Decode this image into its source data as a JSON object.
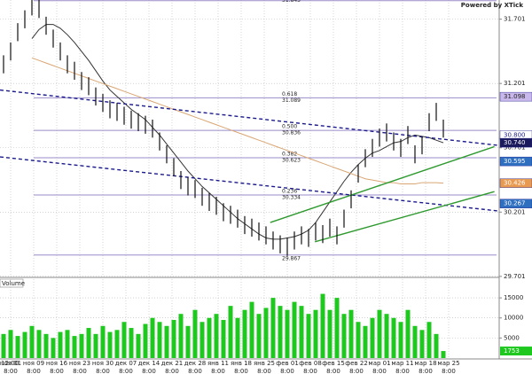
{
  "chart_data": {
    "type": "ohlc",
    "watermark": "Powered by XTick",
    "ylim": [
      29.7,
      31.85
    ],
    "yticks": [
      31.701,
      31.201,
      30.701,
      30.201,
      29.701
    ],
    "color": "#111111",
    "high": [
      31.42,
      31.52,
      31.67,
      31.77,
      31.87,
      31.85,
      31.72,
      31.62,
      31.52,
      31.42,
      31.37,
      31.29,
      31.25,
      31.17,
      31.12,
      31.07,
      31.05,
      31.02,
      30.99,
      30.97,
      30.95,
      30.92,
      30.82,
      30.72,
      30.62,
      30.52,
      30.47,
      30.45,
      30.39,
      30.35,
      30.32,
      30.27,
      30.25,
      30.22,
      30.17,
      30.15,
      30.12,
      30.09,
      30.05,
      30.02,
      30.0,
      30.05,
      30.09,
      30.07,
      30.12,
      30.1,
      30.15,
      30.09,
      30.22,
      30.37,
      30.57,
      30.69,
      30.77,
      30.85,
      30.89,
      30.82,
      30.77,
      30.87,
      30.72,
      30.79,
      30.97,
      31.05,
      30.92
    ],
    "low": [
      31.28,
      31.38,
      31.53,
      31.63,
      31.73,
      31.71,
      31.58,
      31.48,
      31.38,
      31.28,
      31.23,
      31.15,
      31.11,
      31.03,
      30.98,
      30.93,
      30.91,
      30.88,
      30.85,
      30.83,
      30.81,
      30.78,
      30.68,
      30.58,
      30.48,
      30.38,
      30.33,
      30.31,
      30.25,
      30.21,
      30.18,
      30.13,
      30.11,
      30.08,
      30.03,
      30.01,
      29.98,
      29.95,
      29.91,
      29.88,
      29.86,
      29.91,
      29.95,
      29.93,
      29.98,
      29.96,
      30.01,
      29.95,
      30.08,
      30.23,
      30.43,
      30.55,
      30.63,
      30.71,
      30.75,
      30.68,
      30.63,
      30.73,
      30.58,
      30.65,
      30.83,
      30.91,
      30.78
    ],
    "moving_averages": [
      {
        "color": "#333333",
        "values": [
          null,
          null,
          null,
          null,
          31.55,
          31.62,
          31.66,
          31.66,
          31.63,
          31.58,
          31.52,
          31.45,
          31.38,
          31.3,
          31.22,
          31.15,
          31.1,
          31.05,
          31.0,
          30.96,
          30.92,
          30.86,
          30.8,
          30.73,
          30.66,
          30.59,
          30.52,
          30.46,
          30.4,
          30.35,
          30.3,
          30.25,
          30.2,
          30.15,
          30.11,
          30.07,
          30.03,
          30.0,
          29.99,
          29.99,
          30.0,
          30.01,
          30.03,
          30.06,
          30.12,
          30.2,
          30.28,
          30.36,
          30.44,
          30.51,
          30.57,
          30.62,
          30.66,
          30.68,
          30.71,
          30.74,
          30.75,
          30.78,
          30.8,
          30.79,
          30.78,
          30.76,
          30.74
        ]
      },
      {
        "color": "#d9a673",
        "values": [
          null,
          null,
          null,
          null,
          31.4,
          31.38,
          31.36,
          31.34,
          31.32,
          31.3,
          31.28,
          31.26,
          31.24,
          31.22,
          31.2,
          31.18,
          31.16,
          31.14,
          31.12,
          31.1,
          31.08,
          31.06,
          31.04,
          31.02,
          31.0,
          30.98,
          30.96,
          30.94,
          30.92,
          30.9,
          30.88,
          30.86,
          30.84,
          30.82,
          30.8,
          30.78,
          30.76,
          30.74,
          30.72,
          30.7,
          30.68,
          30.66,
          30.64,
          30.62,
          30.6,
          30.58,
          30.56,
          30.54,
          30.52,
          30.5,
          30.48,
          30.46,
          30.45,
          30.44,
          30.43,
          30.43,
          30.42,
          30.42,
          30.42,
          30.43,
          30.43,
          30.43,
          30.426
        ]
      }
    ],
    "trend_lines": [
      {
        "color": "#1a1a8c",
        "dashed": true,
        "x": [
          -0.5,
          69.7
        ],
        "y": [
          31.15,
          30.72
        ]
      },
      {
        "color": "#1a1a8c",
        "dashed": true,
        "x": [
          -0.5,
          69.7
        ],
        "y": [
          30.63,
          30.21
        ]
      },
      {
        "color": "#2e9a2e",
        "dashed": false,
        "x": [
          37.6,
          69.2
        ],
        "y": [
          30.12,
          30.71
        ]
      },
      {
        "color": "#2e9a2e",
        "dashed": false,
        "x": [
          43.9,
          69.2
        ],
        "y": [
          29.97,
          30.36
        ]
      }
    ],
    "fib_color": "#9a8cc8",
    "fib_levels": [
      {
        "price": 31.845
      },
      {
        "ratio": "0.618",
        "price": 31.089
      },
      {
        "ratio": "0.500",
        "price": 30.836
      },
      {
        "ratio": "0.382",
        "price": 30.623
      },
      {
        "ratio": "0.236",
        "price": 30.334
      },
      {
        "price": 29.867
      }
    ],
    "price_markers": [
      {
        "value": 31.098,
        "label": "31.098",
        "color": "#c9b8ec",
        "text_color": "#222222"
      },
      {
        "value": 30.8,
        "label": "30.800",
        "color": "#ffffff",
        "text_color": "#1a1a8c"
      },
      {
        "value": 30.74,
        "label": "30.740",
        "color": "#1a1a5c",
        "text_color": "#ffffff"
      },
      {
        "value": 30.595,
        "label": "30.595",
        "color": "#2f6fc0",
        "text_color": "#ffffff"
      },
      {
        "value": 30.426,
        "label": "30.426",
        "color": "#e89a50",
        "text_color": "#ffffff"
      },
      {
        "value": 30.267,
        "label": "30.267",
        "color": "#2f6fc0",
        "text_color": "#ffffff"
      }
    ],
    "start_label": "12:00",
    "dates": [
      "ноя 01",
      "ноя 09",
      "ноя 16",
      "ноя 23",
      "ноя 30",
      "дек 07",
      "дек 14",
      "дек 21",
      "дек 28",
      "янв 11",
      "янв 18",
      "янв 25",
      "фев 01",
      "фев 08",
      "фев 15",
      "фев 22",
      "мар 01",
      "мар 11",
      "мар 18",
      "мар 25"
    ],
    "times": [
      "8:00",
      "8:00",
      "8:00",
      "8:00",
      "8:00",
      "8:00",
      "8:00",
      "8:00",
      "8:00",
      "8:00",
      "8:00",
      "8:00",
      "8:00",
      "8:00",
      "8:00",
      "8:00",
      "8:00",
      "8:00",
      "8:00",
      "8:00"
    ],
    "volume": {
      "title": "Volume",
      "color": "#1ec81e",
      "ylim": [
        0,
        19000
      ],
      "yticks": [
        15000,
        10000,
        5000
      ],
      "values": [
        6000,
        7000,
        5500,
        6500,
        8000,
        7000,
        6000,
        5000,
        6500,
        7000,
        5500,
        6000,
        7500,
        6000,
        8000,
        6500,
        7000,
        9000,
        7500,
        6000,
        8500,
        10000,
        9000,
        8000,
        9500,
        11000,
        8000,
        12000,
        9000,
        10000,
        11000,
        9500,
        13000,
        10000,
        12000,
        14000,
        11000,
        12500,
        15000,
        13000,
        12000,
        14000,
        13000,
        11000,
        12000,
        16000,
        12000,
        15000,
        11000,
        12000,
        9000,
        8000,
        10000,
        12000,
        11000,
        10000,
        9000,
        12000,
        8000,
        7000,
        9000,
        6000,
        1753
      ]
    }
  }
}
